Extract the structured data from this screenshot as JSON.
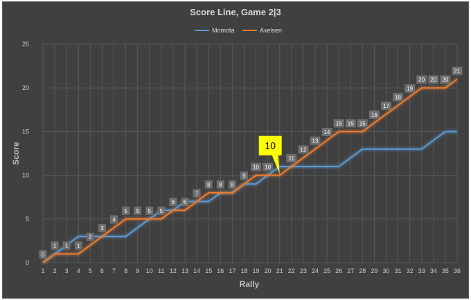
{
  "chart_data": {
    "type": "line",
    "title": "Score Line, Game 2|3",
    "xlabel": "Rally",
    "ylabel": "Score",
    "ylim": [
      0,
      25
    ],
    "y_ticks": [
      0,
      5,
      10,
      15,
      20,
      25
    ],
    "x": [
      1,
      2,
      3,
      4,
      5,
      6,
      7,
      8,
      9,
      10,
      11,
      12,
      13,
      14,
      15,
      16,
      17,
      18,
      19,
      20,
      21,
      22,
      23,
      24,
      25,
      26,
      27,
      28,
      29,
      30,
      31,
      32,
      33,
      34,
      35,
      36
    ],
    "grid": true,
    "legend_position": "top",
    "series": [
      {
        "name": "Momota",
        "color": "#5b9bd5",
        "values": [
          0,
          1,
          2,
          3,
          3,
          3,
          3,
          3,
          4,
          5,
          6,
          6,
          7,
          7,
          7,
          8,
          8,
          9,
          9,
          10,
          11,
          11,
          11,
          11,
          11,
          11,
          12,
          13,
          13,
          13,
          13,
          13,
          13,
          14,
          15,
          15
        ]
      },
      {
        "name": "Axelsen",
        "color": "#ed7d31",
        "values": [
          0,
          1,
          1,
          1,
          2,
          3,
          4,
          5,
          5,
          5,
          5,
          6,
          6,
          7,
          8,
          8,
          8,
          9,
          10,
          10,
          10,
          11,
          12,
          13,
          14,
          15,
          15,
          15,
          16,
          17,
          18,
          19,
          20,
          20,
          20,
          21
        ],
        "data_labels": [
          "0",
          "1",
          "1",
          "1",
          "2",
          "3",
          "4",
          "5",
          "5",
          "5",
          "5",
          "6",
          "6",
          "7",
          "8",
          "8",
          "8",
          "9",
          "10",
          "10",
          "",
          "11",
          "12",
          "13",
          "14",
          "15",
          "15",
          "15",
          "16",
          "17",
          "18",
          "19",
          "20",
          "20",
          "20",
          "21"
        ]
      }
    ],
    "annotations": [
      {
        "text": "10",
        "x": 21,
        "y": 10,
        "color": "#ffff00"
      }
    ]
  }
}
